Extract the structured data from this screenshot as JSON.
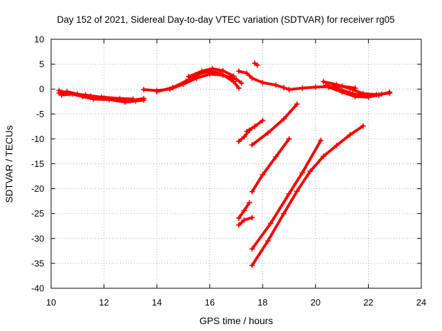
{
  "chart_data": {
    "type": "scatter",
    "title": "Day 152 of 2021, Sidereal Day-to-day VTEC variation (SDTVAR) for receiver rg05",
    "xlabel": "GPS time / hours",
    "ylabel": "SDTVAR / TECUs",
    "xlim": [
      10,
      24
    ],
    "ylim": [
      -40,
      10
    ],
    "x_ticks": [
      10,
      12,
      14,
      16,
      18,
      20,
      22,
      24
    ],
    "y_ticks": [
      -40,
      -35,
      -30,
      -25,
      -20,
      -15,
      -10,
      -5,
      0,
      5,
      10
    ],
    "grid": true,
    "marker_color": "#ff0000",
    "segments": [
      {
        "points": [
          [
            10.3,
            -0.8
          ],
          [
            10.6,
            -0.5
          ],
          [
            11.0,
            -1.0
          ],
          [
            11.5,
            -1.4
          ],
          [
            12.0,
            -1.8
          ],
          [
            12.5,
            -2.1
          ],
          [
            13.0,
            -2.3
          ],
          [
            13.5,
            -1.9
          ]
        ]
      },
      {
        "points": [
          [
            10.4,
            -1.2
          ],
          [
            10.8,
            -1.0
          ],
          [
            11.2,
            -1.5
          ],
          [
            11.6,
            -2.0
          ],
          [
            12.2,
            -2.1
          ],
          [
            12.8,
            -2.6
          ],
          [
            13.2,
            -2.4
          ],
          [
            13.5,
            -2.2
          ]
        ]
      },
      {
        "points": [
          [
            10.3,
            -0.3
          ],
          [
            10.7,
            -0.9
          ],
          [
            11.3,
            -1.2
          ],
          [
            11.9,
            -1.6
          ],
          [
            12.6,
            -1.9
          ],
          [
            13.1,
            -2.0
          ]
        ]
      },
      {
        "points": [
          [
            13.5,
            -0.1
          ],
          [
            14.0,
            -0.3
          ],
          [
            14.5,
            0.0
          ],
          [
            15.0,
            1.0
          ],
          [
            15.5,
            2.2
          ],
          [
            16.0,
            3.0
          ],
          [
            16.5,
            2.8
          ],
          [
            17.0,
            2.0
          ],
          [
            17.2,
            1.2
          ]
        ]
      },
      {
        "points": [
          [
            14.0,
            -0.5
          ],
          [
            14.6,
            0.3
          ],
          [
            15.1,
            1.6
          ],
          [
            15.6,
            3.0
          ],
          [
            16.0,
            3.6
          ],
          [
            16.4,
            3.2
          ],
          [
            16.9,
            1.5
          ],
          [
            17.1,
            0.2
          ]
        ]
      },
      {
        "points": [
          [
            15.2,
            2.5
          ],
          [
            15.7,
            3.6
          ],
          [
            16.1,
            4.1
          ],
          [
            16.5,
            3.7
          ],
          [
            16.9,
            2.6
          ]
        ]
      },
      {
        "points": [
          [
            17.7,
            5.2
          ],
          [
            17.8,
            4.8
          ]
        ]
      },
      {
        "points": [
          [
            17.1,
            3.6
          ],
          [
            17.4,
            3.2
          ],
          [
            17.6,
            2.2
          ],
          [
            18.0,
            1.3
          ],
          [
            18.5,
            0.8
          ],
          [
            18.8,
            0.3
          ],
          [
            19.0,
            -0.1
          ]
        ]
      },
      {
        "points": [
          [
            19.0,
            -0.1
          ],
          [
            19.5,
            0.2
          ],
          [
            20.0,
            0.4
          ],
          [
            20.5,
            0.5
          ],
          [
            21.0,
            0.6
          ],
          [
            21.5,
            0.2
          ]
        ]
      },
      {
        "points": [
          [
            20.3,
            1.5
          ],
          [
            20.8,
            0.9
          ],
          [
            21.3,
            0.1
          ],
          [
            21.8,
            -0.9
          ],
          [
            22.3,
            -1.1
          ],
          [
            22.8,
            -0.8
          ]
        ]
      },
      {
        "points": [
          [
            20.4,
            0.8
          ],
          [
            20.9,
            0.0
          ],
          [
            21.4,
            -0.9
          ],
          [
            21.9,
            -1.4
          ],
          [
            22.4,
            -1.2
          ],
          [
            22.8,
            -0.6
          ]
        ]
      },
      {
        "points": [
          [
            20.5,
            0.4
          ],
          [
            21.0,
            -0.6
          ],
          [
            21.5,
            -1.5
          ],
          [
            22.0,
            -1.6
          ],
          [
            22.5,
            -1.0
          ]
        ]
      },
      {
        "points": [
          [
            17.4,
            -8.5
          ],
          [
            17.7,
            -7.5
          ],
          [
            18.0,
            -6.3
          ]
        ]
      },
      {
        "points": [
          [
            17.1,
            -10.5
          ],
          [
            17.3,
            -9.6
          ],
          [
            17.5,
            -8.3
          ]
        ]
      },
      {
        "points": [
          [
            17.6,
            -11.2
          ],
          [
            18.2,
            -8.8
          ],
          [
            18.8,
            -6.0
          ],
          [
            19.3,
            -3.0
          ]
        ]
      },
      {
        "points": [
          [
            17.6,
            -20.6
          ],
          [
            18.0,
            -17.2
          ],
          [
            18.5,
            -13.6
          ],
          [
            19.0,
            -10.0
          ]
        ]
      },
      {
        "points": [
          [
            17.1,
            -25.9
          ],
          [
            17.3,
            -24.4
          ],
          [
            17.5,
            -22.8
          ]
        ]
      },
      {
        "points": [
          [
            17.1,
            -27.3
          ],
          [
            17.3,
            -26.3
          ],
          [
            17.6,
            -25.8
          ]
        ]
      },
      {
        "points": [
          [
            17.6,
            -32.1
          ],
          [
            18.3,
            -27.0
          ],
          [
            19.0,
            -21.0
          ],
          [
            19.5,
            -16.8
          ],
          [
            20.2,
            -10.3
          ]
        ]
      },
      {
        "points": [
          [
            17.6,
            -35.4
          ],
          [
            18.2,
            -30.5
          ],
          [
            18.8,
            -25.0
          ],
          [
            19.3,
            -20.5
          ],
          [
            19.8,
            -16.5
          ],
          [
            20.3,
            -13.5
          ],
          [
            20.8,
            -11.3
          ],
          [
            21.3,
            -9.2
          ],
          [
            21.8,
            -7.4
          ]
        ]
      }
    ]
  }
}
